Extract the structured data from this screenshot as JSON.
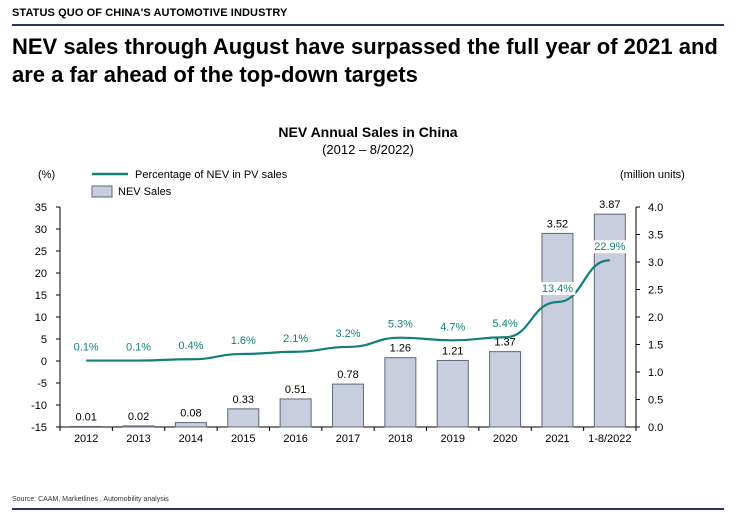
{
  "header": {
    "section_title": "STATUS QUO OF CHINA'S AUTOMOTIVE INDUSTRY",
    "headline": "NEV sales through August have surpassed the full year of 2021 and are a far ahead of the top-down targets"
  },
  "footer": {
    "source": "Source: CAAM, Marketlines , Automobility analysis"
  },
  "colors": {
    "line": "#138078",
    "bar_fill": "#c9cedf",
    "bar_stroke": "#5e6678",
    "rule": "#1f3864"
  },
  "chart_data": {
    "type": "bar",
    "title": "NEV Annual Sales in China",
    "subtitle": "(2012 – 8/2022)",
    "categories": [
      "2012",
      "2013",
      "2014",
      "2015",
      "2016",
      "2017",
      "2018",
      "2019",
      "2020",
      "2021",
      "1-8/2022"
    ],
    "left_axis_label": "(%)",
    "right_axis_label": "(million units)",
    "left_ylim": [
      -15,
      35
    ],
    "left_ticks": [
      35,
      30,
      25,
      20,
      15,
      10,
      5,
      0,
      -5,
      -10,
      -15
    ],
    "right_ylim": [
      0.0,
      4.0
    ],
    "right_ticks": [
      "4.0",
      "3.5",
      "3.0",
      "2.5",
      "2.0",
      "1.5",
      "1.0",
      "0.5",
      "0.0"
    ],
    "legend_position": "top-left",
    "grid": false,
    "series": [
      {
        "name": "Percentage of NEV in PV sales",
        "type": "line",
        "axis": "left",
        "values": [
          0.1,
          0.1,
          0.4,
          1.6,
          2.1,
          3.2,
          5.3,
          4.7,
          5.4,
          13.4,
          22.9
        ],
        "labels": [
          "0.1%",
          "0.1%",
          "0.4%",
          "1.6%",
          "2.1%",
          "3.2%",
          "5.3%",
          "4.7%",
          "5.4%",
          "13.4%",
          "22.9%"
        ]
      },
      {
        "name": "NEV Sales",
        "type": "bar",
        "axis": "right",
        "values": [
          0.01,
          0.02,
          0.08,
          0.33,
          0.51,
          0.78,
          1.26,
          1.21,
          1.37,
          3.52,
          3.87
        ],
        "labels": [
          "0.01",
          "0.02",
          "0.08",
          "0.33",
          "0.51",
          "0.78",
          "1.26",
          "1.21",
          "1.37",
          "3.52",
          "3.87"
        ]
      }
    ]
  }
}
